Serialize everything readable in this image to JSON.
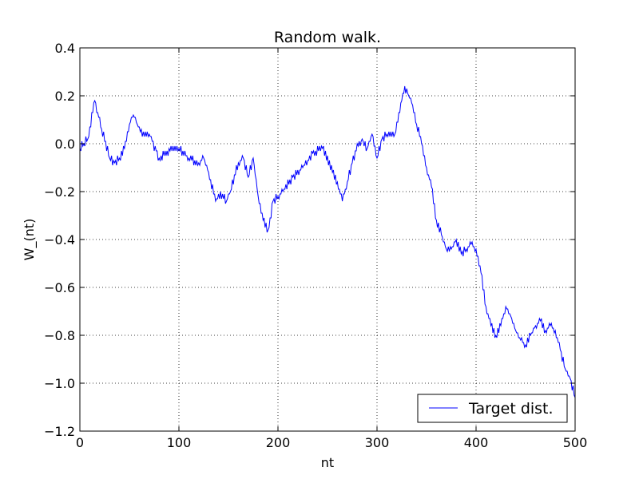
{
  "chart_data": {
    "type": "line",
    "title": "Random walk.",
    "xlabel": "nt",
    "ylabel": "W_(nt)",
    "xlim": [
      0,
      500
    ],
    "ylim": [
      -1.2,
      0.4
    ],
    "xticks": [
      0,
      100,
      200,
      300,
      400,
      500
    ],
    "xtick_labels": [
      "0",
      "100",
      "200",
      "300",
      "400",
      "500"
    ],
    "yticks": [
      -1.2,
      -1.0,
      -0.8,
      -0.6,
      -0.4,
      -0.2,
      0.0,
      0.2,
      0.4
    ],
    "ytick_labels": [
      "−1.2",
      "−1.0",
      "−0.8",
      "−0.6",
      "−0.4",
      "−0.2",
      "0.0",
      "0.2",
      "0.4"
    ],
    "grid": true,
    "grid_style": "dotted",
    "legend_position": "lower-right",
    "series": [
      {
        "name": "Target dist.",
        "color": "#0000ff",
        "step": 0.02,
        "anchors": [
          [
            0,
            -0.02
          ],
          [
            4,
            0.0
          ],
          [
            8,
            0.02
          ],
          [
            15,
            0.18
          ],
          [
            22,
            0.06
          ],
          [
            30,
            -0.06
          ],
          [
            35,
            -0.08
          ],
          [
            40,
            -0.06
          ],
          [
            45,
            -0.02
          ],
          [
            50,
            0.08
          ],
          [
            54,
            0.12
          ],
          [
            58,
            0.08
          ],
          [
            62,
            0.05
          ],
          [
            70,
            0.04
          ],
          [
            80,
            -0.06
          ],
          [
            90,
            -0.03
          ],
          [
            100,
            -0.02
          ],
          [
            110,
            -0.06
          ],
          [
            120,
            -0.08
          ],
          [
            125,
            -0.06
          ],
          [
            130,
            -0.12
          ],
          [
            137,
            -0.24
          ],
          [
            142,
            -0.21
          ],
          [
            148,
            -0.24
          ],
          [
            152,
            -0.2
          ],
          [
            160,
            -0.08
          ],
          [
            165,
            -0.06
          ],
          [
            170,
            -0.14
          ],
          [
            175,
            -0.06
          ],
          [
            180,
            -0.22
          ],
          [
            185,
            -0.32
          ],
          [
            190,
            -0.37
          ],
          [
            195,
            -0.24
          ],
          [
            200,
            -0.22
          ],
          [
            205,
            -0.2
          ],
          [
            215,
            -0.14
          ],
          [
            225,
            -0.1
          ],
          [
            235,
            -0.04
          ],
          [
            245,
            -0.02
          ],
          [
            255,
            -0.12
          ],
          [
            260,
            -0.16
          ],
          [
            265,
            -0.24
          ],
          [
            270,
            -0.16
          ],
          [
            275,
            -0.08
          ],
          [
            280,
            -0.01
          ],
          [
            285,
            0.01
          ],
          [
            290,
            -0.02
          ],
          [
            295,
            0.04
          ],
          [
            300,
            -0.06
          ],
          [
            305,
            0.02
          ],
          [
            310,
            0.04
          ],
          [
            318,
            0.04
          ],
          [
            325,
            0.18
          ],
          [
            328,
            0.24
          ],
          [
            332,
            0.2
          ],
          [
            336,
            0.16
          ],
          [
            340,
            0.08
          ],
          [
            345,
            0.01
          ],
          [
            350,
            -0.1
          ],
          [
            355,
            -0.18
          ],
          [
            360,
            -0.32
          ],
          [
            365,
            -0.38
          ],
          [
            370,
            -0.44
          ],
          [
            375,
            -0.44
          ],
          [
            380,
            -0.4
          ],
          [
            385,
            -0.46
          ],
          [
            390,
            -0.44
          ],
          [
            395,
            -0.42
          ],
          [
            400,
            -0.44
          ],
          [
            405,
            -0.54
          ],
          [
            410,
            -0.68
          ],
          [
            415,
            -0.76
          ],
          [
            420,
            -0.8
          ],
          [
            425,
            -0.76
          ],
          [
            430,
            -0.68
          ],
          [
            435,
            -0.72
          ],
          [
            440,
            -0.78
          ],
          [
            445,
            -0.82
          ],
          [
            450,
            -0.84
          ],
          [
            455,
            -0.8
          ],
          [
            460,
            -0.76
          ],
          [
            465,
            -0.74
          ],
          [
            470,
            -0.78
          ],
          [
            475,
            -0.76
          ],
          [
            480,
            -0.78
          ],
          [
            485,
            -0.86
          ],
          [
            490,
            -0.94
          ],
          [
            495,
            -0.98
          ],
          [
            500,
            -1.06
          ]
        ]
      }
    ]
  }
}
